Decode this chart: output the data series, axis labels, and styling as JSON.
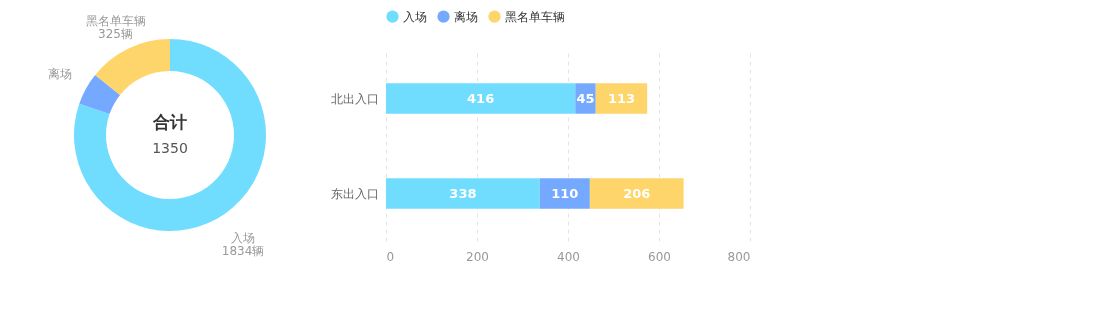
{
  "chart_data": [
    {
      "type": "donut",
      "categories": [
        "入场",
        "离场",
        "黑名单车辆"
      ],
      "values": [
        1834,
        125,
        325
      ],
      "value_labels": [
        "1834辆",
        null,
        "325辆"
      ],
      "colors": [
        "#70ddff",
        "#74a9ff",
        "#fed56b"
      ],
      "annotations": [
        "合计",
        "1350"
      ]
    },
    {
      "type": "bar",
      "orientation": "horizontal",
      "stacked": true,
      "categories": [
        "北出入口",
        "东出入口"
      ],
      "series": [
        {
          "name": "入场",
          "color": "#70ddff",
          "values": [
            416,
            338
          ]
        },
        {
          "name": "离场",
          "color": "#74a9ff",
          "values": [
            45,
            110
          ]
        },
        {
          "name": "黑名单车辆",
          "color": "#fed56b",
          "values": [
            113,
            206
          ]
        }
      ],
      "xlim": [
        0,
        800
      ],
      "xticks": [
        0,
        200,
        400,
        600,
        800
      ],
      "grid": "x",
      "legend": "top left",
      "data_labels": true
    }
  ]
}
